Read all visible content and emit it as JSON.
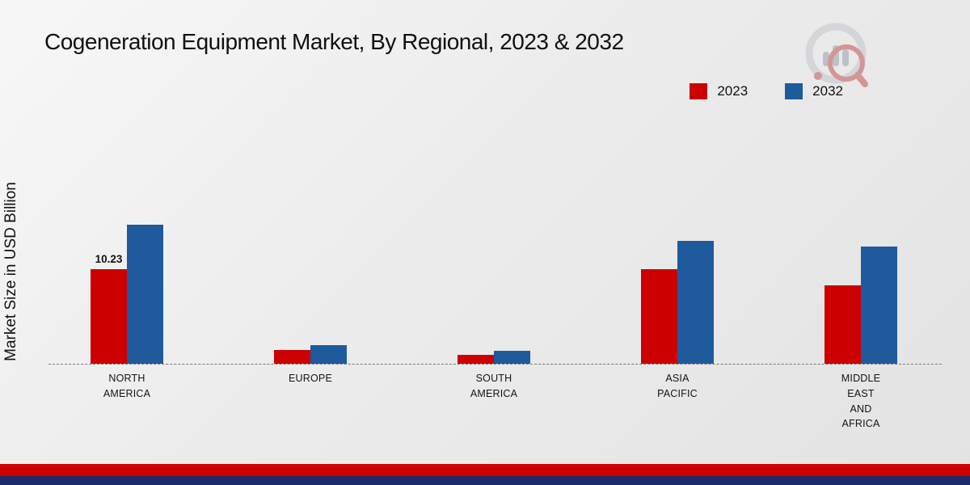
{
  "page": {
    "title": "Cogeneration Equipment Market, By Regional, 2023 & 2032",
    "ylabel": "Market Size in USD Billion",
    "footer_red_color": "#cc0000",
    "footer_navy_color": "#1b2a68"
  },
  "legend": {
    "items": [
      {
        "label": "2023",
        "color": "#cc0000"
      },
      {
        "label": "2032",
        "color": "#1f5a9d"
      }
    ]
  },
  "chart_data": {
    "type": "bar",
    "title": "Cogeneration Equipment Market, By Regional, 2023 & 2032",
    "xlabel": "",
    "ylabel": "Market Size in USD Billion",
    "categories": [
      "North America",
      "Europe",
      "South America",
      "Asia Pacific",
      "Middle East and Africa"
    ],
    "tick_labels": [
      "NORTH\nAMERICA",
      "EUROPE",
      "SOUTH\nAMERICA",
      "ASIA\nPACIFIC",
      "MIDDLE\nEAST\nAND\nAFRICA"
    ],
    "series": [
      {
        "name": "2023",
        "color": "#cc0000",
        "values": [
          10.23,
          1.5,
          1.0,
          10.2,
          8.5
        ]
      },
      {
        "name": "2032",
        "color": "#1f5a9d",
        "values": [
          15.0,
          2.0,
          1.4,
          13.3,
          12.7
        ]
      }
    ],
    "annotations": [
      {
        "series_index": 0,
        "category_index": 0,
        "text": "10.23"
      }
    ],
    "ylim": [
      0,
      16
    ],
    "grid": false,
    "axis_style": "dashed-zero-baseline",
    "legend_position": "top-right"
  }
}
